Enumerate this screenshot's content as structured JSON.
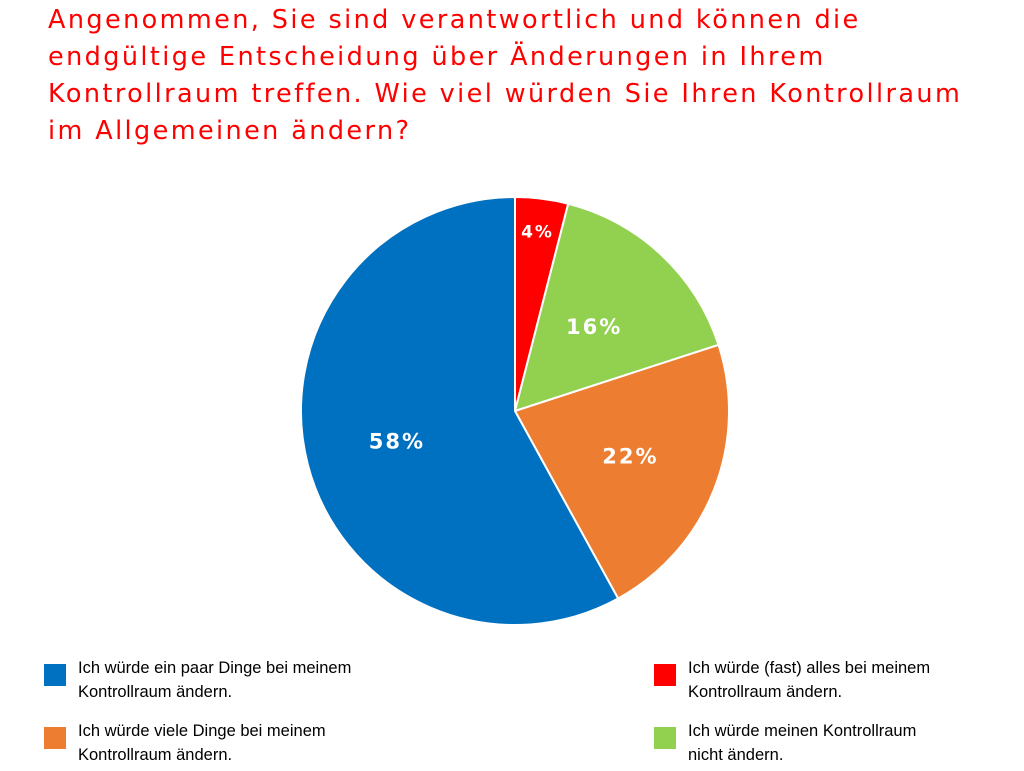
{
  "chart_data": {
    "type": "pie",
    "title": "Angenommen, Sie sind verantwortlich und können die endgültige Entscheidung über Änderungen in Ihrem Kontrollraum treffen. Wie viel würden Sie Ihren Kontrollraum im Allgemeinen ändern?",
    "slices": [
      {
        "label": "Ich würde (fast) alles bei meinem Kontrollraum ändern.",
        "value": 4,
        "value_label": "4%",
        "color": "#ff0000"
      },
      {
        "label": "Ich würde meinen Kontrollraum nicht ändern.",
        "value": 16,
        "value_label": "16%",
        "color": "#92d050"
      },
      {
        "label": "Ich würde viele Dinge bei meinem Kontrollraum ändern.",
        "value": 22,
        "value_label": "22%",
        "color": "#ed7d31"
      },
      {
        "label": "Ich würde ein paar Dinge bei meinem Kontrollraum ändern.",
        "value": 58,
        "value_label": "58%",
        "color": "#0070c0"
      }
    ],
    "start_angle_deg": 0,
    "direction": "clockwise",
    "legend_position": "bottom",
    "legend": [
      {
        "text": "Ich würde ein paar Dinge bei meinem\nKontrollraum ändern.",
        "color": "#0070c0"
      },
      {
        "text": "Ich würde (fast) alles bei meinem\nKontrollraum ändern.",
        "color": "#ff0000"
      },
      {
        "text": "Ich würde viele Dinge bei meinem\nKontrollraum ändern.",
        "color": "#ed7d31"
      },
      {
        "text": "Ich würde meinen Kontrollraum\nnicht ändern.",
        "color": "#92d050"
      }
    ]
  }
}
